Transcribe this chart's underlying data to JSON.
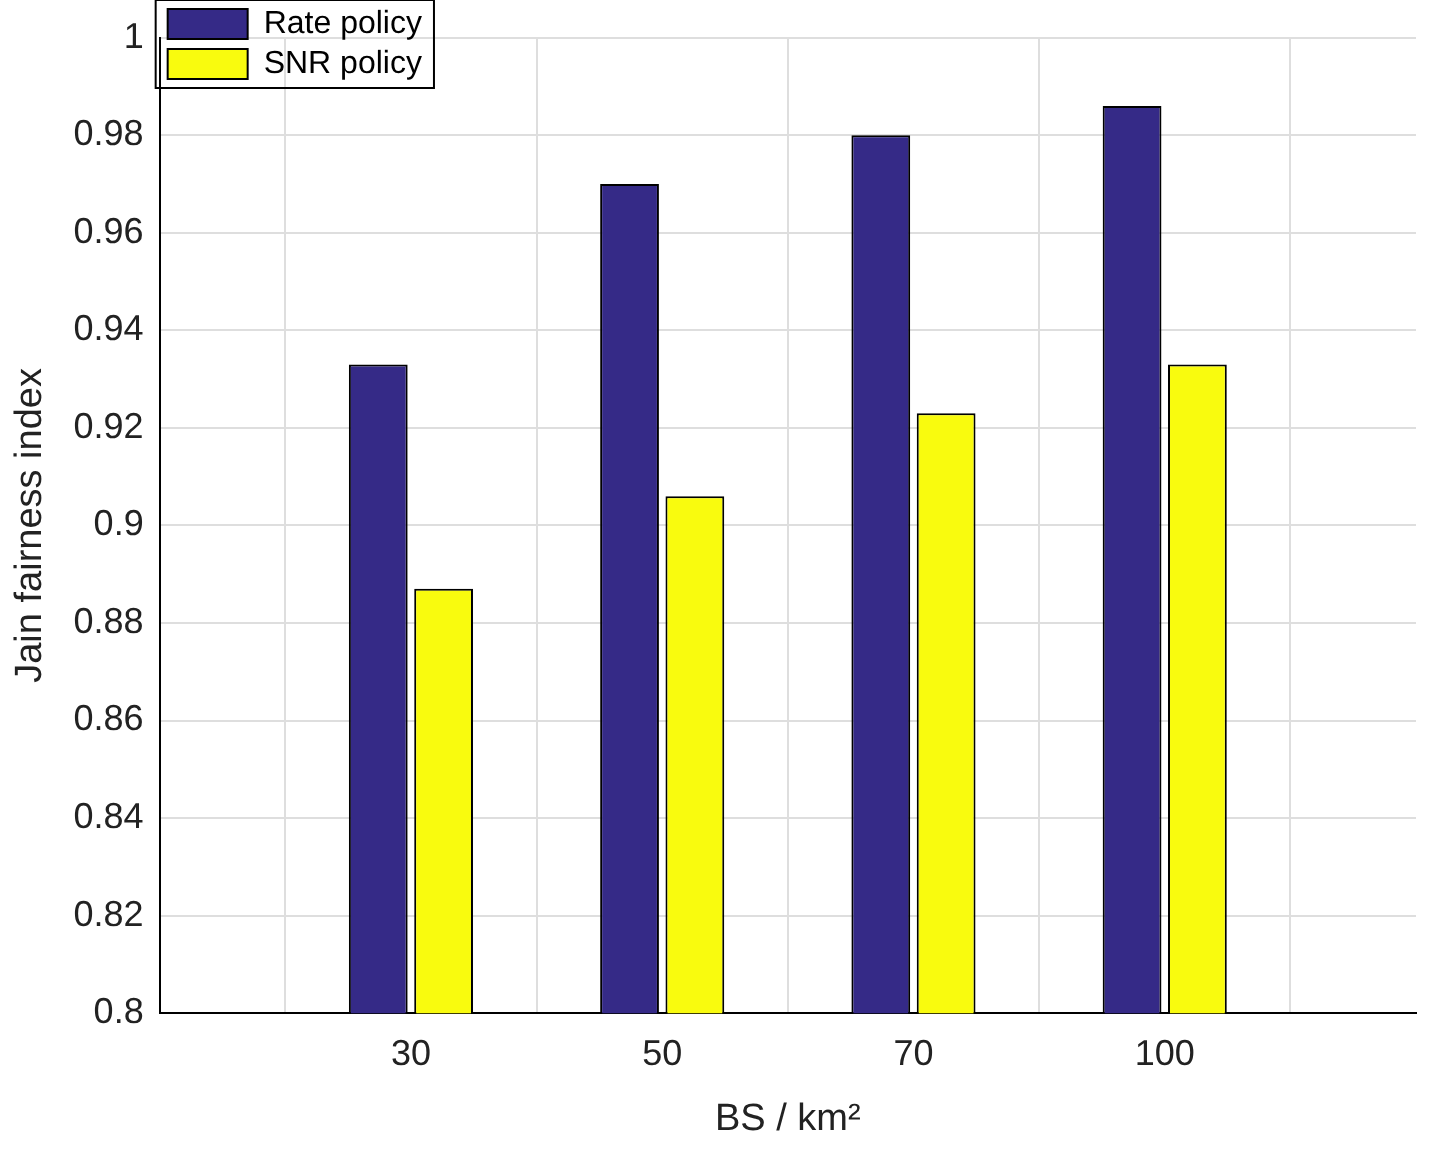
{
  "chart_data": {
    "type": "bar",
    "xlabel": "BS / km²",
    "ylabel": "Jain fairness index",
    "categories": [
      "30",
      "50",
      "70",
      "100"
    ],
    "series": [
      {
        "name": "Rate policy",
        "color": "#352a87",
        "values": [
          0.933,
          0.97,
          0.98,
          0.986
        ]
      },
      {
        "name": "SNR policy",
        "color": "#f9fb0e",
        "values": [
          0.887,
          0.906,
          0.923,
          0.933
        ]
      }
    ],
    "ylim": [
      0.8,
      1
    ],
    "yticks": [
      0.8,
      0.82,
      0.84,
      0.86,
      0.88,
      {
        "value": 0.9,
        "label": "0.9"
      },
      0.92,
      0.94,
      0.96,
      0.98,
      {
        "value": 1,
        "label": "1"
      }
    ],
    "grid": true,
    "legend": "top left"
  }
}
